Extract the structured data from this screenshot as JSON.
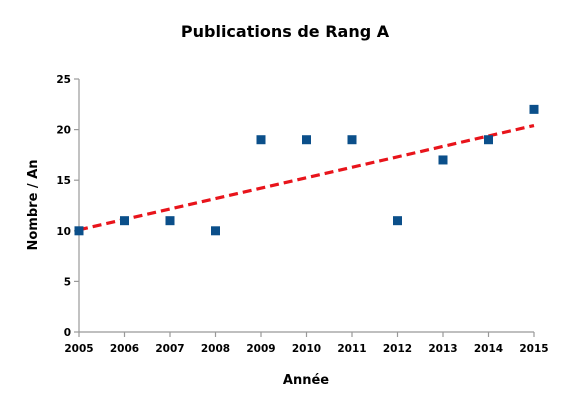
{
  "chart_data": {
    "type": "scatter",
    "title": "Publications de Rang A",
    "xlabel": "Année",
    "ylabel": "Nombre / An",
    "x": [
      2005,
      2006,
      2007,
      2008,
      2009,
      2010,
      2011,
      2012,
      2013,
      2014,
      2015
    ],
    "y": [
      10,
      11,
      11,
      10,
      19,
      19,
      19,
      11,
      17,
      19,
      22
    ],
    "xlim": [
      2005,
      2015
    ],
    "ylim": [
      0,
      25
    ],
    "x_ticks": [
      "2005",
      "2006",
      "2007",
      "2008",
      "2009",
      "2010",
      "2011",
      "2012",
      "2013",
      "2014",
      "2015"
    ],
    "y_ticks": [
      "0",
      "5",
      "10",
      "15",
      "20",
      "25"
    ],
    "trendline": {
      "type": "linear",
      "style": "dashed",
      "y_start": 10.1,
      "y_end": 20.4
    },
    "grid": false,
    "legend": "none",
    "colors": {
      "marker": "#0b4f8a",
      "trendline": "#e8141b",
      "axis": "#999999"
    }
  }
}
